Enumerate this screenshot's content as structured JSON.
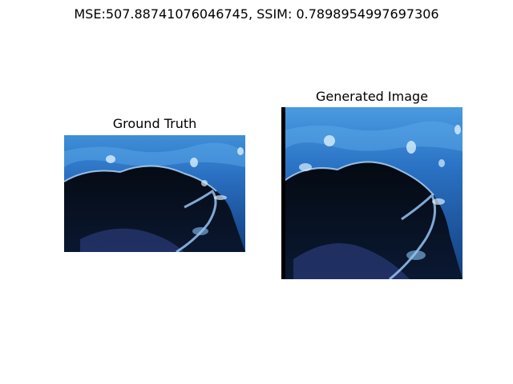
{
  "figure": {
    "suptitle": "MSE:507.88741076046745, SSIM: 0.7898954997697306"
  },
  "panels": [
    {
      "title": "Ground Truth"
    },
    {
      "title": "Generated Image"
    }
  ],
  "colors": {
    "water_light": "#4a9be0",
    "water_mid": "#1e5fae",
    "water_deep": "#0b2b5c",
    "shadow": "#03080f",
    "highlight": "#d9efff"
  }
}
